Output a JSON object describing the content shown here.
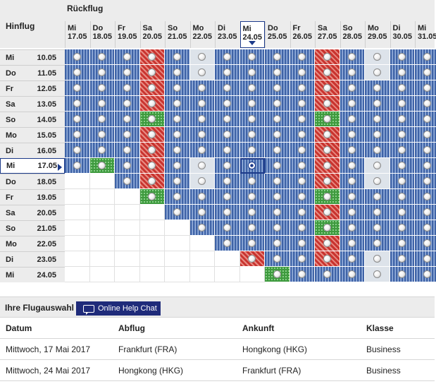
{
  "grid": {
    "return_label": "Rückflug",
    "outbound_label": "Hinflug",
    "return_days": [
      {
        "wd": "Mi",
        "date": "17.05"
      },
      {
        "wd": "Do",
        "date": "18.05"
      },
      {
        "wd": "Fr",
        "date": "19.05"
      },
      {
        "wd": "Sa",
        "date": "20.05"
      },
      {
        "wd": "So",
        "date": "21.05"
      },
      {
        "wd": "Mo",
        "date": "22.05"
      },
      {
        "wd": "Di",
        "date": "23.05"
      },
      {
        "wd": "Mi",
        "date": "24.05"
      },
      {
        "wd": "Do",
        "date": "25.05"
      },
      {
        "wd": "Fr",
        "date": "26.05"
      },
      {
        "wd": "Sa",
        "date": "27.05"
      },
      {
        "wd": "So",
        "date": "28.05"
      },
      {
        "wd": "Mo",
        "date": "29.05"
      },
      {
        "wd": "Di",
        "date": "30.05"
      },
      {
        "wd": "Mi",
        "date": "31.05"
      }
    ],
    "outbound_days": [
      {
        "wd": "Mi",
        "date": "10.05"
      },
      {
        "wd": "Do",
        "date": "11.05"
      },
      {
        "wd": "Fr",
        "date": "12.05"
      },
      {
        "wd": "Sa",
        "date": "13.05"
      },
      {
        "wd": "So",
        "date": "14.05"
      },
      {
        "wd": "Mo",
        "date": "15.05"
      },
      {
        "wd": "Di",
        "date": "16.05"
      },
      {
        "wd": "Mi",
        "date": "17.05"
      },
      {
        "wd": "Do",
        "date": "18.05"
      },
      {
        "wd": "Fr",
        "date": "19.05"
      },
      {
        "wd": "Sa",
        "date": "20.05"
      },
      {
        "wd": "So",
        "date": "21.05"
      },
      {
        "wd": "Mo",
        "date": "22.05"
      },
      {
        "wd": "Di",
        "date": "23.05"
      },
      {
        "wd": "Mi",
        "date": "24.05"
      }
    ],
    "selected_outbound": "17.05",
    "selected_return": "24.05",
    "legend_colors": {
      "available": "#3f63a6",
      "expensive": "#c9342f",
      "cheapest": "#3e9a3e",
      "unavailable": "#dde3ea"
    },
    "cells": [
      "BBBRBLBBBBRBLBB",
      "BBBRBLBBBBRBLBB",
      "BBBRBBBBBBRBBBB",
      "BBBRBBBBBBRBBBB",
      "BBBGBBBBBBGBBBB",
      "BBBRBBBBBBRBBBB",
      "BBBRBBBBBBRBBBB",
      "BGBRBLBSBBRBLBB",
      "--BRBLBBBBRBLBB",
      "---GBBBBBBGBBBB",
      "----BBBBBBRBBBB",
      "-----BBBBBGBBBB",
      "------BBBBRBBBB",
      "-------RBBRBLBB",
      "--------GBBBLBB"
    ]
  },
  "selection": {
    "title": "Ihre Flugauswahl",
    "help_label": "Online Help Chat",
    "columns": [
      "Datum",
      "Abflug",
      "Ankunft",
      "Klasse"
    ],
    "rows": [
      [
        "Mittwoch, 17 Mai 2017",
        "Frankfurt (FRA)",
        "Hongkong (HKG)",
        "Business"
      ],
      [
        "Mittwoch, 24 Mai 2017",
        "Hongkong (HKG)",
        "Frankfurt (FRA)",
        "Business"
      ]
    ]
  }
}
